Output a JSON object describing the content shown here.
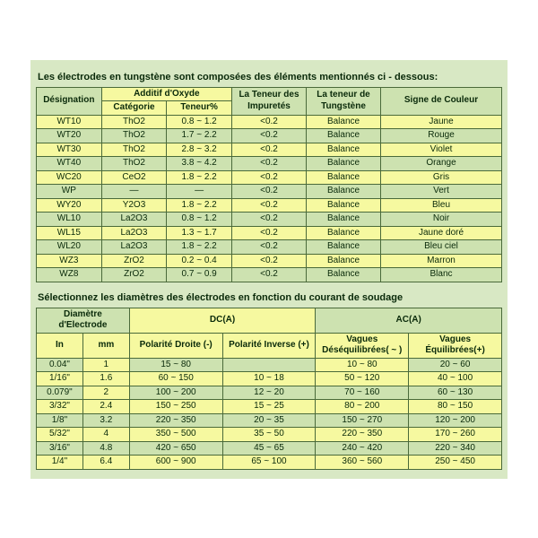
{
  "colors": {
    "page_bg": "#d8e8c4",
    "header_bg": "#cde2b0",
    "row_yellow": "#f6f9a0",
    "row_green": "#cde2b0",
    "border": "#4a6a3a",
    "text": "#0a2a0a"
  },
  "table1": {
    "title": "Les électrodes en tungstène sont composées des éléments mentionnés ci - dessous:",
    "headers": {
      "designation": "Désignation",
      "additif": "Additif d'Oxyde",
      "categorie": "Catégorie",
      "teneur": "Teneur%",
      "impuretes": "La Teneur des Impuretés",
      "tungstene": "La teneur de Tungstène",
      "signe": "Signe de Couleur"
    },
    "rows": [
      {
        "d": "WT10",
        "cat": "ThO2",
        "ten": "0.8 ~ 1.2",
        "imp": "<0.2",
        "tun": "Balance",
        "sig": "Jaune",
        "cls": "y"
      },
      {
        "d": "WT20",
        "cat": "ThO2",
        "ten": "1.7 ~ 2.2",
        "imp": "<0.2",
        "tun": "Balance",
        "sig": "Rouge",
        "cls": "g"
      },
      {
        "d": "WT30",
        "cat": "ThO2",
        "ten": "2.8 ~ 3.2",
        "imp": "<0.2",
        "tun": "Balance",
        "sig": "Violet",
        "cls": "y"
      },
      {
        "d": "WT40",
        "cat": "ThO2",
        "ten": "3.8 ~ 4.2",
        "imp": "<0.2",
        "tun": "Balance",
        "sig": "Orange",
        "cls": "g"
      },
      {
        "d": "WC20",
        "cat": "CeO2",
        "ten": "1.8 ~ 2.2",
        "imp": "<0.2",
        "tun": "Balance",
        "sig": "Gris",
        "cls": "y"
      },
      {
        "d": "WP",
        "cat": "—",
        "ten": "—",
        "imp": "<0.2",
        "tun": "Balance",
        "sig": "Vert",
        "cls": "g"
      },
      {
        "d": "WY20",
        "cat": "Y2O3",
        "ten": "1.8 ~ 2.2",
        "imp": "<0.2",
        "tun": "Balance",
        "sig": "Bleu",
        "cls": "y"
      },
      {
        "d": "WL10",
        "cat": "La2O3",
        "ten": "0.8 ~ 1.2",
        "imp": "<0.2",
        "tun": "Balance",
        "sig": "Noir",
        "cls": "g"
      },
      {
        "d": "WL15",
        "cat": "La2O3",
        "ten": "1.3 ~ 1.7",
        "imp": "<0.2",
        "tun": "Balance",
        "sig": "Jaune doré",
        "cls": "y"
      },
      {
        "d": "WL20",
        "cat": "La2O3",
        "ten": "1.8 ~ 2.2",
        "imp": "<0.2",
        "tun": "Balance",
        "sig": "Bleu ciel",
        "cls": "g"
      },
      {
        "d": "WZ3",
        "cat": "ZrO2",
        "ten": "0.2 ~ 0.4",
        "imp": "<0.2",
        "tun": "Balance",
        "sig": "Marron",
        "cls": "y"
      },
      {
        "d": "WZ8",
        "cat": "ZrO2",
        "ten": "0.7 ~ 0.9",
        "imp": "<0.2",
        "tun": "Balance",
        "sig": "Blanc",
        "cls": "g"
      }
    ]
  },
  "table2": {
    "title": "Sélectionnez les diamètres des électrodes en fonction du courant de soudage",
    "headers": {
      "diametre": "Diamètre d'Electrode",
      "in": "In",
      "mm": "mm",
      "dc": "DC(A)",
      "pol_droite": "Polarité Droite (-)",
      "pol_inverse": "Polarité Inverse (+)",
      "ac": "AC(A)",
      "vagues_des": "Vagues Déséquilibrées( ~ )",
      "vagues_eq": "Vagues Équilibrées(+)"
    },
    "rows": [
      {
        "in": "0.04\"",
        "mm": "1",
        "pd": "15 ~ 80",
        "pi": "",
        "vd": "10 ~ 80",
        "ve": "20 ~ 60",
        "cls": "g",
        "hl_mm": true,
        "hl_vd": true
      },
      {
        "in": "1/16\"",
        "mm": "1.6",
        "pd": "60 ~ 150",
        "pi": "10 ~ 18",
        "vd": "50 ~ 120",
        "ve": "40 ~ 100",
        "cls": "y"
      },
      {
        "in": "0.079\"",
        "mm": "2",
        "pd": "100 ~ 200",
        "pi": "12 ~ 20",
        "vd": "70 ~ 160",
        "ve": "60 ~ 130",
        "cls": "g",
        "hl_mm": true
      },
      {
        "in": "3/32\"",
        "mm": "2.4",
        "pd": "150 ~ 250",
        "pi": "15 ~ 25",
        "vd": "80 ~ 200",
        "ve": "80 ~ 150",
        "cls": "y"
      },
      {
        "in": "1/8\"",
        "mm": "3.2",
        "pd": "220 ~ 350",
        "pi": "20 ~ 35",
        "vd": "150 ~ 270",
        "ve": "120 ~ 200",
        "cls": "g"
      },
      {
        "in": "5/32\"",
        "mm": "4",
        "pd": "350 ~ 500",
        "pi": "35 ~ 50",
        "vd": "220 ~ 350",
        "ve": "170 ~ 260",
        "cls": "y",
        "hl_mm": true
      },
      {
        "in": "3/16\"",
        "mm": "4.8",
        "pd": "420 ~ 650",
        "pi": "45 ~ 65",
        "vd": "240 ~ 420",
        "ve": "220 ~ 340",
        "cls": "g"
      },
      {
        "in": "1/4\"",
        "mm": "6.4",
        "pd": "600 ~ 900",
        "pi": "65 ~ 100",
        "vd": "360 ~ 560",
        "ve": "250 ~ 450",
        "cls": "y"
      }
    ]
  }
}
